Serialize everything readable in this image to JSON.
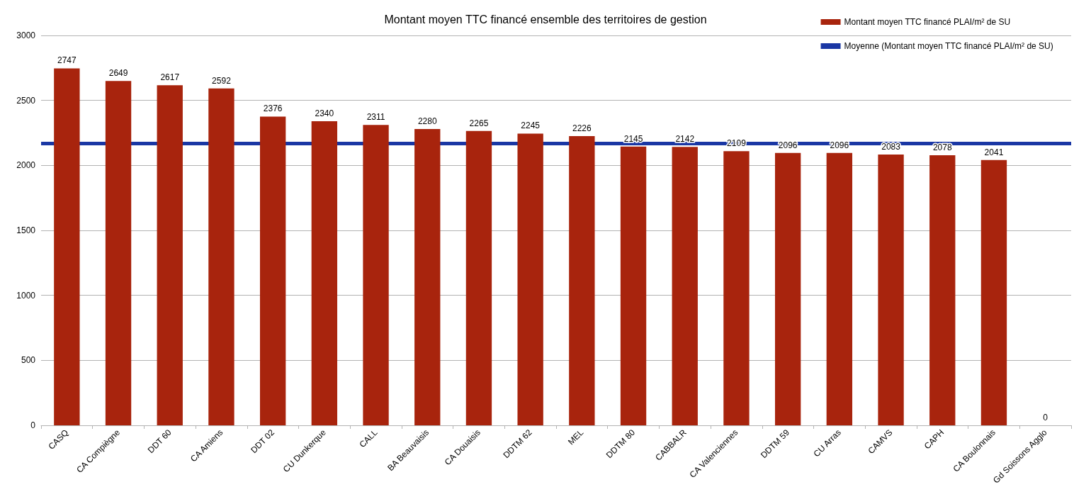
{
  "chart_data": {
    "type": "bar",
    "title": "Montant moyen TTC financé ensemble des territoires de gestion",
    "categories": [
      "CASQ",
      "CA Compiègne",
      "DDT 60",
      "CA Amiens",
      "DDT 02",
      "CU Dunkerque",
      "CALL",
      "BA Beauvaisis",
      "CA Douaisis",
      "DDTM 62",
      "MEL",
      "DDTM 80",
      "CABBALR",
      "CA Valenciennes",
      "DDTM 59",
      "CU Arras",
      "CAMVS",
      "CAPH",
      "CA Boulonnais",
      "Gd Soissons Agglo"
    ],
    "series": [
      {
        "name": "Montant moyen TTC financé PLAI/m² de SU",
        "color": "#a8240d",
        "values": [
          2747,
          2649,
          2617,
          2592,
          2376,
          2340,
          2311,
          2280,
          2265,
          2245,
          2226,
          2145,
          2142,
          2109,
          2096,
          2096,
          2083,
          2078,
          2041,
          0
        ]
      }
    ],
    "ref_lines": [
      {
        "axis": "y",
        "value": 2172,
        "label": "Moyenne (Montant moyen TTC financé PLAI/m² de SU)",
        "color": "#1a37a4"
      }
    ],
    "ylim": [
      0,
      3000
    ],
    "yticks": [
      0,
      500,
      1000,
      1500,
      2000,
      2500,
      3000
    ],
    "grid": "y",
    "legend": "top right",
    "data_labels": true
  }
}
